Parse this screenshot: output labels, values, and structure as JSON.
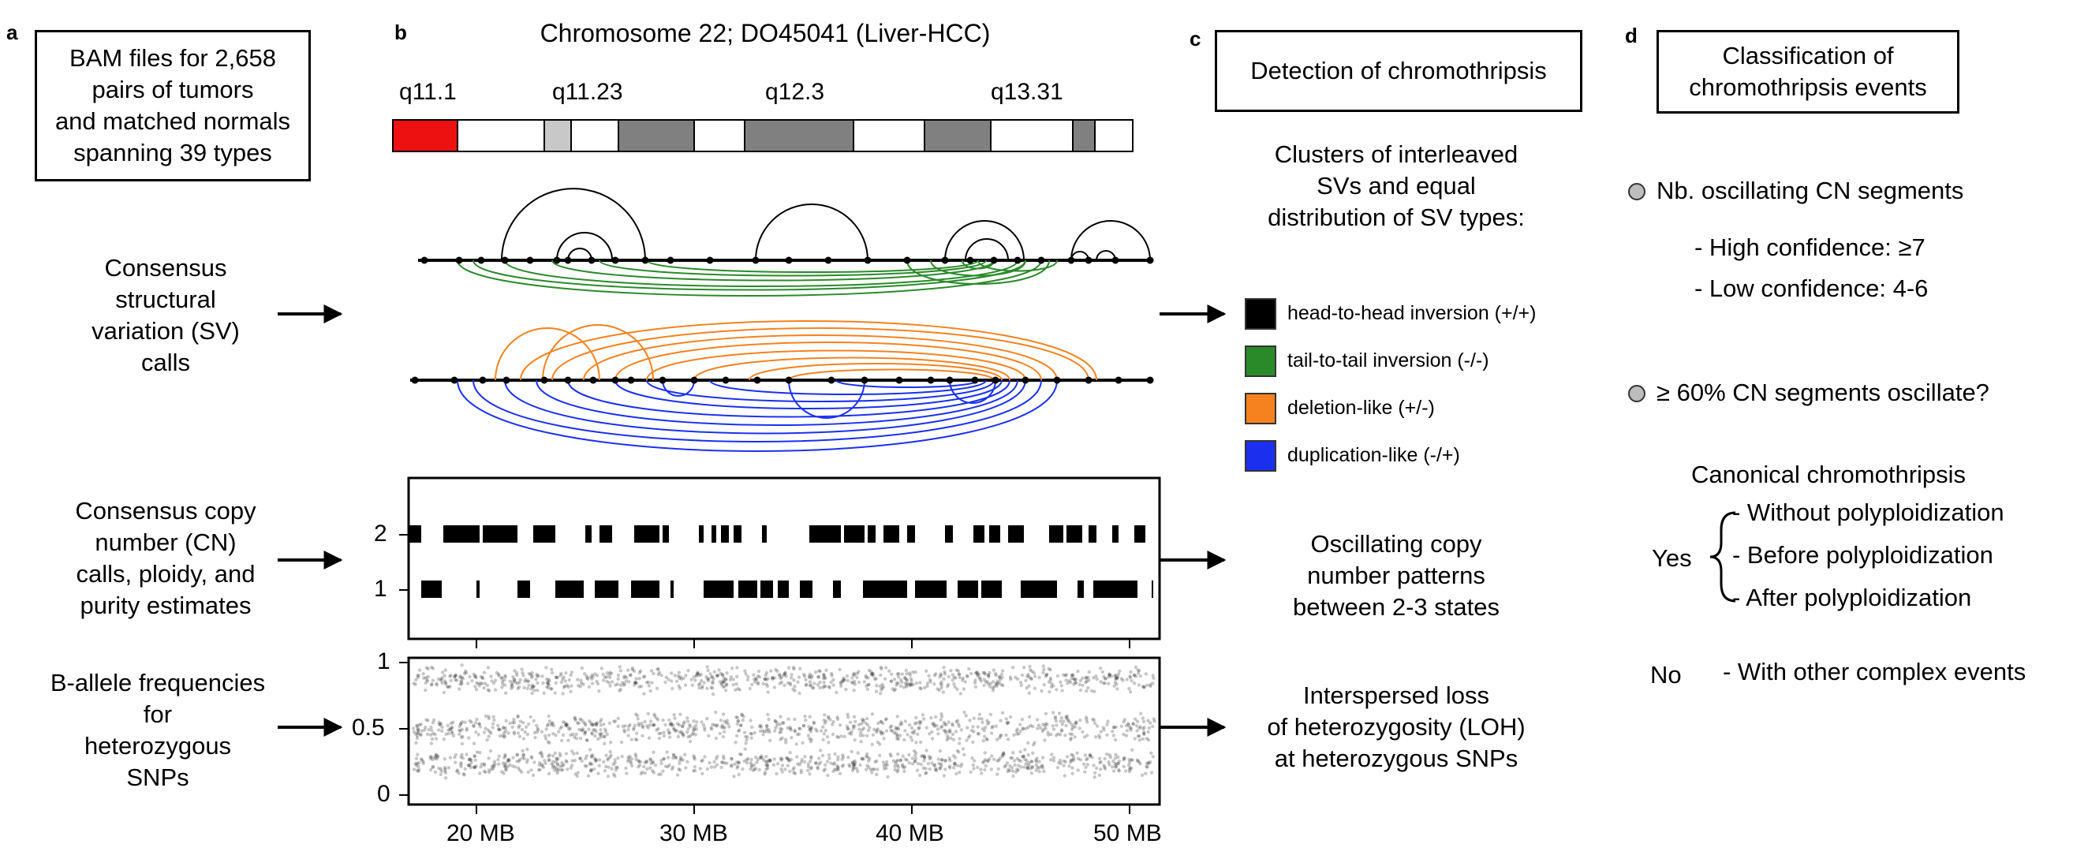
{
  "panel_letters": {
    "a": "a",
    "b": "b",
    "c": "c",
    "d": "d"
  },
  "panel_a": {
    "box_lines": [
      "BAM files for 2,658",
      "pairs of tumors",
      "and matched normals",
      "spanning 39 types"
    ],
    "sv_label": [
      "Consensus",
      "structural",
      "variation (SV)",
      "calls"
    ],
    "cn_label": [
      "Consensus copy",
      "number (CN)",
      "calls, ploidy, and",
      "purity estimates"
    ],
    "baf_label": [
      "B-allele frequencies",
      "for",
      "heterozygous",
      "SNPs"
    ]
  },
  "panel_b": {
    "title": "Chromosome 22; DO45041 (Liver-HCC)",
    "bands": [
      "q11.1",
      "q11.23",
      "q12.3",
      "q13.31"
    ],
    "cn_ticks": [
      "2",
      "1"
    ],
    "baf_ticks": [
      "1",
      "0.5",
      "0"
    ],
    "x_ticks": [
      "20 MB",
      "30 MB",
      "40 MB",
      "50 MB"
    ]
  },
  "panel_c": {
    "box_title": "Detection of chromothripsis",
    "clusters_text": [
      "Clusters of interleaved",
      "SVs and equal",
      "distribution of SV types:"
    ],
    "legend": [
      {
        "label": "head-to-head inversion (+/+)",
        "color": "#000000"
      },
      {
        "label": "tail-to-tail inversion (-/-)",
        "color": "#2a8a2a"
      },
      {
        "label": "deletion-like (+/-)",
        "color": "#f5821f"
      },
      {
        "label": "duplication-like (-/+)",
        "color": "#1a30ee"
      }
    ],
    "oscillating_text": [
      "Oscillating copy",
      "number patterns",
      "between 2-3 states"
    ],
    "loh_text": [
      "Interspersed loss",
      "of heterozygosity (LOH)",
      "at heterozygous SNPs"
    ]
  },
  "panel_d": {
    "box_title": [
      "Classification of",
      "chromothripsis events"
    ],
    "criterion1": "Nb. oscillating CN segments",
    "high_conf": "- High confidence: ≥7",
    "low_conf": "- Low confidence: 4-6",
    "criterion2": "≥ 60% CN segments oscillate?",
    "canonical": "Canonical chromothripsis",
    "yes": "Yes",
    "yes_items": [
      "- Without polyploidization",
      "- Before polyploidization",
      "- After polyploidization"
    ],
    "no": "No",
    "no_item": "- With other complex events"
  },
  "colors": {
    "centromere": "#ee1111",
    "band_light": "#c8c8c8",
    "band_dark": "#808080",
    "hh": "#000000",
    "tt": "#2a8a2a",
    "del": "#f5821f",
    "dup": "#1a30ee"
  }
}
